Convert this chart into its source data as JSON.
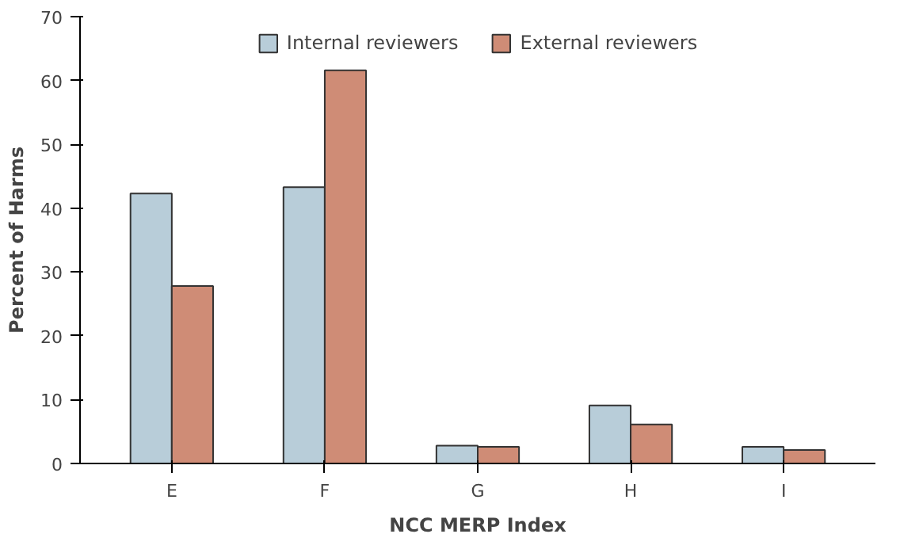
{
  "chart_data": {
    "type": "bar",
    "xlabel": "NCC MERP Index",
    "ylabel": "Percent of Harms",
    "categories": [
      "E",
      "F",
      "G",
      "H",
      "I"
    ],
    "series": [
      {
        "name": "Internal reviewers",
        "color": "#b8cdd9",
        "values": [
          42.3,
          43.3,
          2.8,
          9.1,
          2.6
        ]
      },
      {
        "name": "External reviewers",
        "color": "#cf8c76",
        "values": [
          27.8,
          61.6,
          2.6,
          6.1,
          2.1
        ]
      }
    ],
    "ylim": [
      0,
      70
    ],
    "yticks": [
      0,
      10,
      20,
      30,
      40,
      50,
      60,
      70
    ],
    "grid": false,
    "legend": "top"
  }
}
